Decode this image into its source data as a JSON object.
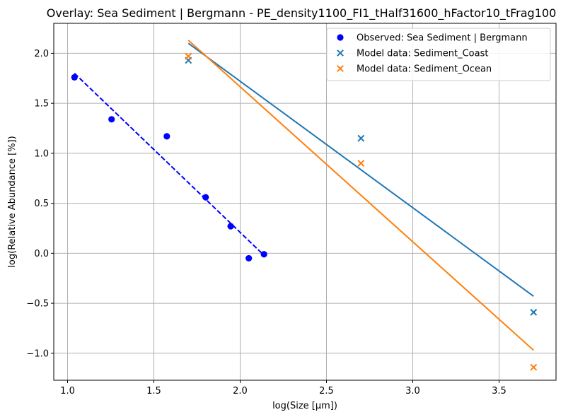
{
  "chart_data": {
    "type": "scatter",
    "title": "Overlay: Sea Sediment | Bergmann - PE_density1100_FI1_tHalf31600_hFactor10_tFrag100",
    "xlabel": "log(Size [μm])",
    "ylabel": "log(Relative Abundance [%])",
    "xlim": [
      0.92,
      3.83
    ],
    "ylim": [
      -1.27,
      2.3
    ],
    "xticks": [
      1.0,
      1.5,
      2.0,
      2.5,
      3.0,
      3.5
    ],
    "xtick_labels": [
      "1.0",
      "1.5",
      "2.0",
      "2.5",
      "3.0",
      "3.5"
    ],
    "yticks": [
      -1.0,
      -0.5,
      0.0,
      0.5,
      1.0,
      1.5,
      2.0
    ],
    "ytick_labels": [
      "−1.0",
      "−0.5",
      "0.0",
      "0.5",
      "1.0",
      "1.5",
      "2.0"
    ],
    "grid": true,
    "legend_position": "top-right",
    "series": [
      {
        "name": "Observed: Sea Sediment | Bergmann",
        "marker": "circle",
        "color": "#0000ff",
        "x": [
          1.04,
          1.255,
          1.575,
          1.8,
          1.945,
          2.05,
          2.138
        ],
        "y": [
          1.76,
          1.34,
          1.17,
          0.56,
          0.27,
          -0.05,
          -0.01
        ]
      },
      {
        "name": "Model data: Sediment_Coast",
        "marker": "x",
        "color": "#1f77b4",
        "x": [
          1.7,
          2.7,
          3.7
        ],
        "y": [
          1.93,
          1.15,
          -0.59
        ]
      },
      {
        "name": "Model data: Sediment_Ocean",
        "marker": "x",
        "color": "#ff7f0e",
        "x": [
          1.7,
          2.7,
          3.7
        ],
        "y": [
          1.97,
          0.9,
          -1.14
        ]
      }
    ],
    "fit_lines": [
      {
        "series": "Observed: Sea Sediment | Bergmann",
        "style": "dashed",
        "color": "#0000ff",
        "x": [
          1.04,
          2.138
        ],
        "y": [
          1.8,
          -0.02
        ]
      },
      {
        "series": "Model data: Sediment_Coast",
        "style": "solid",
        "color": "#1f77b4",
        "x": [
          1.7,
          3.7
        ],
        "y": [
          2.1,
          -0.43
        ]
      },
      {
        "series": "Model data: Sediment_Ocean",
        "style": "solid",
        "color": "#ff7f0e",
        "x": [
          1.7,
          3.7
        ],
        "y": [
          2.13,
          -0.97
        ]
      }
    ]
  }
}
